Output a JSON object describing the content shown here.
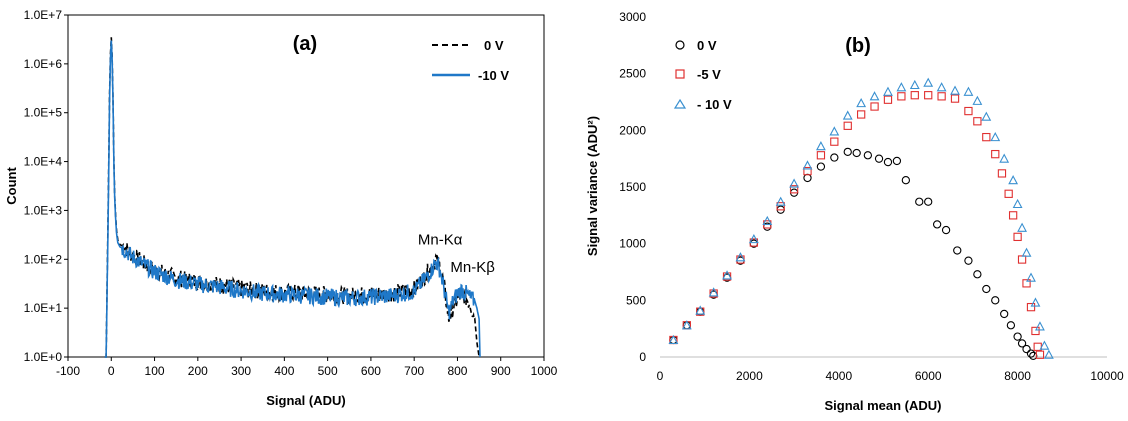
{
  "chart_data": [
    {
      "panel_label": "(a)",
      "type": "line",
      "xlabel": "Signal (ADU)",
      "ylabel": "Count",
      "xlim": [
        -100,
        1000
      ],
      "ylim": [
        1,
        10000000
      ],
      "yscale": "log",
      "xticks": [
        "-100",
        "0",
        "100",
        "200",
        "300",
        "400",
        "500",
        "600",
        "700",
        "800",
        "900",
        "1000"
      ],
      "yticks": [
        "1.0E+0",
        "1.0E+1",
        "1.0E+2",
        "1.0E+3",
        "1.0E+4",
        "1.0E+5",
        "1.0E+6",
        "1.0E+7"
      ],
      "legend_position": "top-right",
      "annotations": [
        {
          "label": "Mn-Kα",
          "x": 760,
          "y": 200
        },
        {
          "label": "Mn-Kβ",
          "x": 835,
          "y": 55
        }
      ],
      "series": [
        {
          "name": "0 V",
          "color": "#000000",
          "dash": "dashed",
          "x": [
            -15,
            -12,
            -8,
            -4,
            -2,
            0,
            2,
            4,
            6,
            8,
            10,
            12,
            15,
            20,
            30,
            50,
            100,
            150,
            200,
            250,
            300,
            350,
            400,
            450,
            500,
            550,
            600,
            650,
            700,
            720,
            740,
            750,
            760,
            770,
            780,
            790,
            800,
            810,
            820,
            830,
            840,
            845,
            850
          ],
          "y": [
            1,
            1,
            300,
            200000,
            1500000,
            3500000,
            1500000,
            200000,
            10000,
            2000,
            800,
            400,
            250,
            200,
            180,
            120,
            60,
            42,
            34,
            30,
            25,
            22,
            21,
            20,
            19,
            18,
            19,
            20,
            25,
            40,
            70,
            100,
            70,
            25,
            6,
            10,
            15,
            20,
            16,
            12,
            6,
            2,
            1
          ]
        },
        {
          "name": "-10 V",
          "color": "#1f78c8",
          "dash": "solid",
          "x": [
            -15,
            -12,
            -8,
            -4,
            -2,
            0,
            2,
            4,
            6,
            8,
            10,
            12,
            15,
            20,
            30,
            50,
            100,
            150,
            200,
            250,
            300,
            350,
            400,
            450,
            500,
            550,
            600,
            650,
            700,
            720,
            740,
            750,
            760,
            770,
            780,
            790,
            800,
            810,
            820,
            830,
            840,
            845,
            850,
            852
          ],
          "y": [
            1,
            1,
            200,
            150000,
            1200000,
            3000000,
            1300000,
            180000,
            9000,
            1800,
            700,
            350,
            220,
            180,
            160,
            110,
            55,
            38,
            31,
            27,
            23,
            20,
            19,
            18,
            17,
            16,
            17,
            18,
            22,
            35,
            60,
            90,
            60,
            22,
            8,
            14,
            20,
            24,
            20,
            16,
            14,
            10,
            6,
            1
          ]
        }
      ]
    },
    {
      "panel_label": "(b)",
      "type": "scatter",
      "xlabel": "Signal mean (ADU)",
      "ylabel": "Signal variance (ADU²)",
      "xlim": [
        0,
        10000
      ],
      "ylim": [
        0,
        3000
      ],
      "xticks": [
        "0",
        "2000",
        "4000",
        "6000",
        "8000",
        "10000"
      ],
      "yticks": [
        "0",
        "500",
        "1000",
        "1500",
        "2000",
        "2500",
        "3000"
      ],
      "legend_position": "top-left",
      "series": [
        {
          "name": "0 V",
          "marker": "circle",
          "color": "#000000",
          "x": [
            300,
            600,
            900,
            1200,
            1500,
            1800,
            2100,
            2400,
            2700,
            3000,
            3300,
            3600,
            3900,
            4200,
            4400,
            4650,
            4900,
            5100,
            5300,
            5500,
            5800,
            6000,
            6200,
            6400,
            6650,
            6900,
            7100,
            7300,
            7500,
            7700,
            7850,
            8000,
            8100,
            8200,
            8300,
            8350
          ],
          "y": [
            150,
            280,
            400,
            550,
            700,
            850,
            1000,
            1150,
            1300,
            1450,
            1580,
            1680,
            1760,
            1810,
            1800,
            1780,
            1750,
            1720,
            1730,
            1560,
            1370,
            1370,
            1170,
            1120,
            940,
            850,
            730,
            600,
            500,
            380,
            280,
            180,
            120,
            70,
            30,
            10
          ]
        },
        {
          "name": "-5 V",
          "marker": "square",
          "color": "#e03030",
          "x": [
            300,
            600,
            900,
            1200,
            1500,
            1800,
            2100,
            2400,
            2700,
            3000,
            3300,
            3600,
            3900,
            4200,
            4500,
            4800,
            5100,
            5400,
            5700,
            6000,
            6300,
            6600,
            6900,
            7100,
            7300,
            7500,
            7650,
            7800,
            7900,
            8000,
            8100,
            8200,
            8300,
            8400,
            8450,
            8500
          ],
          "y": [
            150,
            280,
            400,
            560,
            710,
            860,
            1010,
            1170,
            1330,
            1480,
            1640,
            1780,
            1900,
            2040,
            2140,
            2210,
            2270,
            2300,
            2310,
            2310,
            2300,
            2280,
            2170,
            2080,
            1940,
            1790,
            1620,
            1440,
            1250,
            1060,
            860,
            650,
            440,
            230,
            90,
            20
          ]
        },
        {
          "name": "- 10 V",
          "marker": "triangle",
          "color": "#3a90d0",
          "x": [
            300,
            600,
            900,
            1200,
            1500,
            1800,
            2100,
            2400,
            2700,
            3000,
            3300,
            3600,
            3900,
            4200,
            4500,
            4800,
            5100,
            5400,
            5700,
            6000,
            6300,
            6600,
            6900,
            7100,
            7300,
            7500,
            7700,
            7900,
            8000,
            8100,
            8200,
            8300,
            8400,
            8500,
            8600,
            8700
          ],
          "y": [
            150,
            280,
            410,
            570,
            720,
            880,
            1040,
            1200,
            1370,
            1530,
            1690,
            1860,
            1990,
            2130,
            2240,
            2300,
            2340,
            2380,
            2400,
            2420,
            2380,
            2350,
            2340,
            2260,
            2120,
            1940,
            1750,
            1560,
            1350,
            1140,
            920,
            700,
            480,
            270,
            100,
            20
          ]
        }
      ]
    }
  ]
}
